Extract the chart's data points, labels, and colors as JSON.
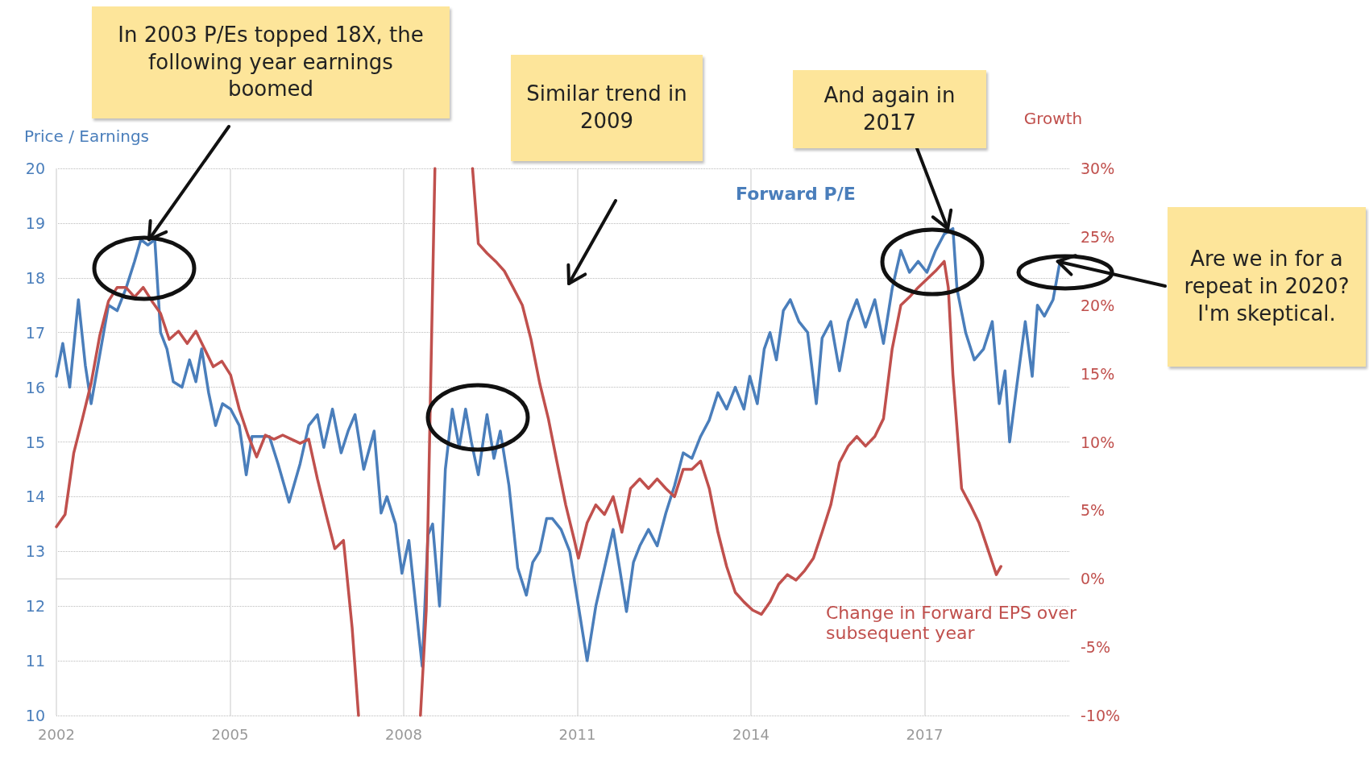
{
  "chart_data": {
    "type": "line",
    "ylabel": "Price / Earnings",
    "y2label": "Growth",
    "xlim": [
      2002,
      2019.5
    ],
    "xticks": [
      2002,
      2005,
      2008,
      2011,
      2014,
      2017
    ],
    "ylim": [
      10,
      20
    ],
    "yticks": [
      10,
      11,
      12,
      13,
      14,
      15,
      16,
      17,
      18,
      19,
      20
    ],
    "y2lim": [
      -10,
      30
    ],
    "y2ticks": [
      {
        "value": -10,
        "label": "-10%"
      },
      {
        "value": -5,
        "label": "-5%"
      },
      {
        "value": 0,
        "label": "0%"
      },
      {
        "value": 5,
        "label": "5%"
      },
      {
        "value": 10,
        "label": "10%"
      },
      {
        "value": 15,
        "label": "15%"
      },
      {
        "value": 20,
        "label": "20%"
      },
      {
        "value": 25,
        "label": "25%"
      },
      {
        "value": 30,
        "label": "30%"
      }
    ],
    "grid": true,
    "legend": false,
    "marker": "none",
    "line_style": "solid",
    "series": [
      {
        "name": "Forward P/E",
        "color": "#4a7ebb",
        "x": [
          2002.0,
          2002.11,
          2002.23,
          2002.38,
          2002.5,
          2002.6,
          2002.75,
          2002.9,
          2003.05,
          2003.2,
          2003.35,
          2003.46,
          2003.58,
          2003.7,
          2003.8,
          2003.91,
          2004.02,
          2004.17,
          2004.3,
          2004.41,
          2004.51,
          2004.63,
          2004.75,
          2004.87,
          2005.01,
          2005.16,
          2005.28,
          2005.38,
          2005.5,
          2005.68,
          2005.83,
          2006.02,
          2006.21,
          2006.36,
          2006.51,
          2006.62,
          2006.77,
          2006.92,
          2007.04,
          2007.16,
          2007.31,
          2007.49,
          2007.61,
          2007.71,
          2007.86,
          2007.97,
          2008.09,
          2008.21,
          2008.32,
          2008.42,
          2008.5,
          2008.62,
          2008.72,
          2008.84,
          2008.96,
          2009.07,
          2009.17,
          2009.29,
          2009.44,
          2009.56,
          2009.67,
          2009.82,
          2009.97,
          2010.12,
          2010.23,
          2010.35,
          2010.47,
          2010.57,
          2010.72,
          2010.87,
          2011.02,
          2011.17,
          2011.32,
          2011.47,
          2011.62,
          2011.73,
          2011.85,
          2011.97,
          2012.08,
          2012.23,
          2012.38,
          2012.53,
          2012.68,
          2012.83,
          2012.98,
          2013.13,
          2013.28,
          2013.43,
          2013.58,
          2013.73,
          2013.88,
          2013.98,
          2014.11,
          2014.23,
          2014.33,
          2014.44,
          2014.56,
          2014.68,
          2014.83,
          2014.98,
          2015.13,
          2015.23,
          2015.38,
          2015.53,
          2015.68,
          2015.83,
          2015.98,
          2016.14,
          2016.29,
          2016.44,
          2016.59,
          2016.74,
          2016.89,
          2017.04,
          2017.19,
          2017.34,
          2017.49,
          2017.56,
          2017.71,
          2017.86,
          2018.02,
          2018.17,
          2018.29,
          2018.39,
          2018.47,
          2018.59,
          2018.74,
          2018.86,
          2018.95,
          2019.07,
          2019.22,
          2019.34
        ],
        "values": [
          16.2,
          16.8,
          16.0,
          17.6,
          16.4,
          15.7,
          16.6,
          17.5,
          17.4,
          17.8,
          18.3,
          18.7,
          18.6,
          18.7,
          17.0,
          16.7,
          16.1,
          16.0,
          16.5,
          16.1,
          16.7,
          15.9,
          15.3,
          15.7,
          15.6,
          15.3,
          14.4,
          15.1,
          15.1,
          15.1,
          14.6,
          13.9,
          14.6,
          15.3,
          15.5,
          14.9,
          15.6,
          14.8,
          15.2,
          15.5,
          14.5,
          15.2,
          13.7,
          14.0,
          13.5,
          12.6,
          13.2,
          12.0,
          10.9,
          13.3,
          13.5,
          12.0,
          14.5,
          15.6,
          14.9,
          15.6,
          15.0,
          14.4,
          15.5,
          14.7,
          15.2,
          14.2,
          12.7,
          12.2,
          12.8,
          13.0,
          13.6,
          13.6,
          13.4,
          13.0,
          12.0,
          11.0,
          12.0,
          12.7,
          13.4,
          12.7,
          11.9,
          12.8,
          13.1,
          13.4,
          13.1,
          13.7,
          14.2,
          14.8,
          14.7,
          15.1,
          15.4,
          15.9,
          15.6,
          16.0,
          15.6,
          16.2,
          15.7,
          16.7,
          17.0,
          16.5,
          17.4,
          17.6,
          17.2,
          17.0,
          15.7,
          16.9,
          17.2,
          16.3,
          17.2,
          17.6,
          17.1,
          17.6,
          16.8,
          17.8,
          18.5,
          18.1,
          18.3,
          18.1,
          18.5,
          18.8,
          18.9,
          17.8,
          17.0,
          16.5,
          16.7,
          17.2,
          15.7,
          16.3,
          15.0,
          16.0,
          17.2,
          16.2,
          17.5,
          17.3,
          17.6,
          18.3
        ]
      },
      {
        "name": "Change in Forward EPS over subsequent year",
        "color": "#c0504d",
        "axis": "y2",
        "x": [
          2002.0,
          2002.15,
          2002.3,
          2002.45,
          2002.6,
          2002.75,
          2002.9,
          2003.05,
          2003.2,
          2003.35,
          2003.5,
          2003.65,
          2003.8,
          2003.95,
          2004.11,
          2004.26,
          2004.41,
          2004.56,
          2004.71,
          2004.86,
          2005.01,
          2005.16,
          2005.31,
          2005.46,
          2005.61,
          2005.76,
          2005.91,
          2006.06,
          2006.21,
          2006.36,
          2006.51,
          2006.66,
          2006.81,
          2006.96,
          2007.11,
          2007.22,
          2007.7,
          2008.29,
          2008.39,
          2008.54,
          2008.9,
          2009.19,
          2009.29,
          2009.44,
          2009.59,
          2009.74,
          2009.89,
          2010.05,
          2010.2,
          2010.35,
          2010.5,
          2010.65,
          2010.8,
          2010.95,
          2011.02,
          2011.17,
          2011.32,
          2011.47,
          2011.62,
          2011.77,
          2011.92,
          2012.08,
          2012.23,
          2012.38,
          2012.53,
          2012.68,
          2012.83,
          2012.98,
          2013.13,
          2013.28,
          2013.43,
          2013.58,
          2013.73,
          2013.88,
          2014.03,
          2014.18,
          2014.33,
          2014.48,
          2014.63,
          2014.78,
          2014.93,
          2015.08,
          2015.23,
          2015.38,
          2015.53,
          2015.68,
          2015.83,
          2015.98,
          2016.14,
          2016.29,
          2016.44,
          2016.59,
          2016.74,
          2016.89,
          2017.04,
          2017.19,
          2017.34,
          2017.41,
          2017.49,
          2017.64,
          2017.79,
          2017.94,
          2018.09,
          2018.24,
          2018.32
        ],
        "values": [
          3.8,
          4.7,
          9.2,
          11.7,
          14.3,
          17.8,
          20.3,
          21.3,
          21.3,
          20.6,
          21.3,
          20.3,
          19.4,
          17.5,
          18.1,
          17.2,
          18.1,
          16.8,
          15.5,
          15.9,
          14.9,
          12.4,
          10.5,
          8.9,
          10.5,
          10.2,
          10.5,
          10.2,
          9.9,
          10.2,
          7.3,
          4.7,
          2.2,
          2.8,
          -3.6,
          -10,
          null,
          -10,
          -2.3,
          30,
          null,
          30,
          24.5,
          23.8,
          23.2,
          22.5,
          21.3,
          20.0,
          17.5,
          14.3,
          11.7,
          8.5,
          5.4,
          2.8,
          1.5,
          4.1,
          5.4,
          4.7,
          6.0,
          3.4,
          6.6,
          7.3,
          6.6,
          7.3,
          6.6,
          6.0,
          8.0,
          8.0,
          8.6,
          6.6,
          3.4,
          0.9,
          -1.0,
          -1.7,
          -2.3,
          -2.6,
          -1.7,
          -0.4,
          0.3,
          -0.1,
          0.6,
          1.5,
          3.4,
          5.4,
          8.5,
          9.7,
          10.4,
          9.7,
          10.4,
          11.7,
          16.8,
          20.0,
          20.6,
          21.3,
          21.9,
          22.5,
          23.2,
          21.3,
          14.9,
          6.6,
          5.4,
          4.1,
          2.2,
          0.3,
          0.9
        ]
      }
    ],
    "annotations": [
      {
        "text": "In 2003 P/Es topped 18X, the following year earnings boomed",
        "x": 2003.6,
        "y": 18.7
      },
      "Similar trend in 2009",
      {
        "text": "And again in 2017",
        "x": 2017.4,
        "y": 18.9
      },
      {
        "text": "Are we in for a repeat in 2020? I'm skeptical.",
        "x": 2019.3,
        "y": 18.3
      }
    ]
  }
}
